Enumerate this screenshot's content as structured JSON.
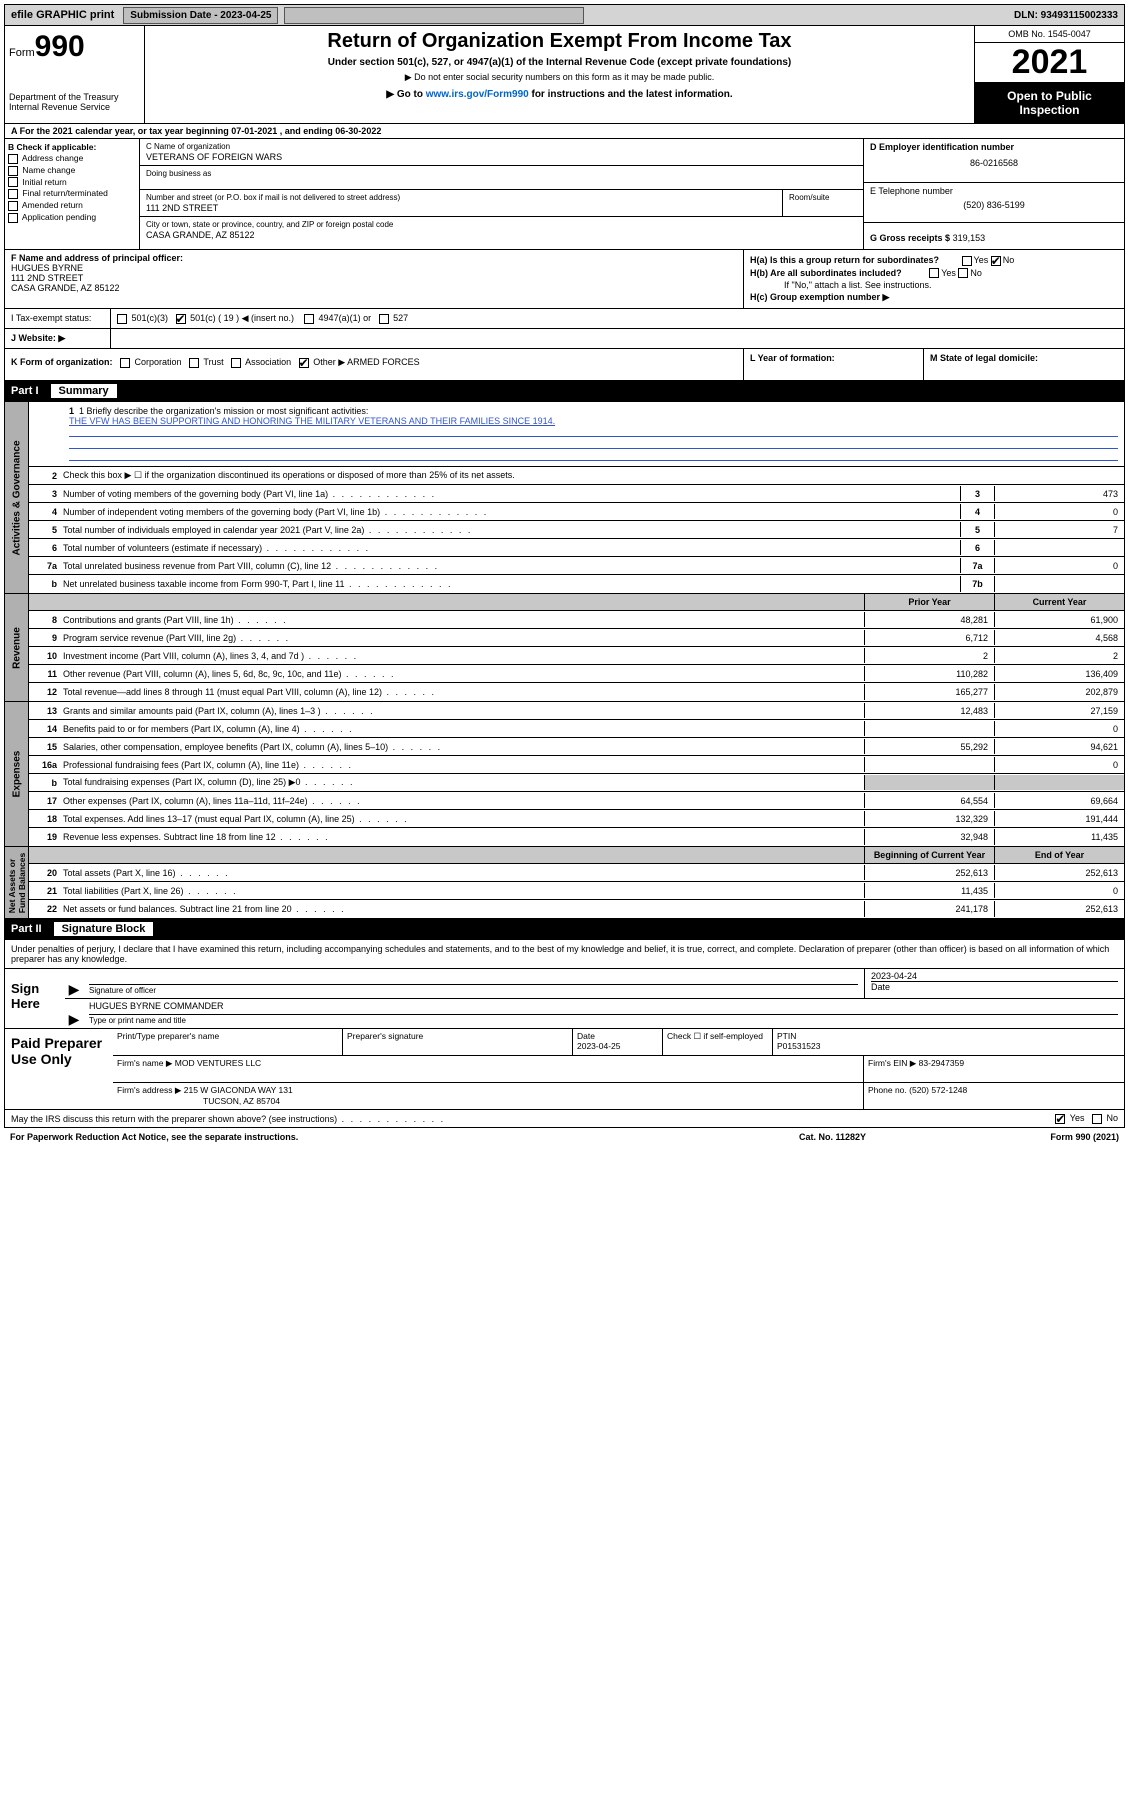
{
  "topbar": {
    "efile": "efile GRAPHIC print",
    "submission_label": "Submission Date - 2023-04-25",
    "dln": "DLN: 93493115002333"
  },
  "header": {
    "form_label": "Form",
    "form_number": "990",
    "dept": "Department of the Treasury\nInternal Revenue Service",
    "title": "Return of Organization Exempt From Income Tax",
    "subtitle": "Under section 501(c), 527, or 4947(a)(1) of the Internal Revenue Code (except private foundations)",
    "note1": "▶ Do not enter social security numbers on this form as it may be made public.",
    "note2_prefix": "▶ Go to ",
    "note2_link": "www.irs.gov/Form990",
    "note2_suffix": " for instructions and the latest information.",
    "omb": "OMB No. 1545-0047",
    "year": "2021",
    "open_public": "Open to Public Inspection"
  },
  "line_a": "For the 2021 calendar year, or tax year beginning 07-01-2021   , and ending 06-30-2022",
  "section_b": {
    "header": "B Check if applicable:",
    "items": [
      "Address change",
      "Name change",
      "Initial return",
      "Final return/terminated",
      "Amended return",
      "Application pending"
    ]
  },
  "section_c": {
    "name_label": "C Name of organization",
    "name_value": "VETERANS OF FOREIGN WARS",
    "dba_label": "Doing business as",
    "dba_value": "",
    "street_label": "Number and street (or P.O. box if mail is not delivered to street address)",
    "street_value": "111 2ND STREET",
    "room_label": "Room/suite",
    "city_label": "City or town, state or province, country, and ZIP or foreign postal code",
    "city_value": "CASA GRANDE, AZ  85122"
  },
  "section_d": {
    "ein_label": "D Employer identification number",
    "ein_value": "86-0216568",
    "tel_label": "E Telephone number",
    "tel_value": "(520) 836-5199",
    "gross_label": "G Gross receipts $",
    "gross_value": "319,153"
  },
  "section_f": {
    "label": "F  Name and address of principal officer:",
    "name": "HUGUES BYRNE",
    "street": "111 2ND STREET",
    "city": "CASA GRANDE, AZ  85122"
  },
  "section_h": {
    "ha": "H(a)  Is this a group return for subordinates?",
    "ha_yes": "Yes",
    "ha_no": "No",
    "hb": "H(b)  Are all subordinates included?",
    "hb_yes": "Yes",
    "hb_no": "No",
    "hb_note": "If \"No,\" attach a list. See instructions.",
    "hc": "H(c)  Group exemption number ▶"
  },
  "tax_status": {
    "label": "I    Tax-exempt status:",
    "opt1": "501(c)(3)",
    "opt2": "501(c) ( 19 ) ◀ (insert no.)",
    "opt3": "4947(a)(1) or",
    "opt4": "527"
  },
  "website": {
    "label": "J    Website: ▶",
    "value": ""
  },
  "section_k": {
    "label": "K Form of organization:",
    "opts": [
      "Corporation",
      "Trust",
      "Association",
      "Other ▶"
    ],
    "other_value": "ARMED FORCES",
    "l_label": "L Year of formation:",
    "m_label": "M State of legal domicile:"
  },
  "part1": {
    "name": "Part I",
    "title": "Summary",
    "line1_label": "1  Briefly describe the organization's mission or most significant activities:",
    "line1_text": "THE VFW HAS BEEN SUPPORTING AND HONORING THE MILITARY VETERANS AND THEIR FAMILIES SINCE 1914.",
    "line2": "Check this box ▶ ☐  if the organization discontinued its operations or disposed of more than 25% of its net assets.",
    "gov_rows": [
      {
        "n": "3",
        "t": "Number of voting members of the governing body (Part VI, line 1a)",
        "box": "3",
        "v": "473"
      },
      {
        "n": "4",
        "t": "Number of independent voting members of the governing body (Part VI, line 1b)",
        "box": "4",
        "v": "0"
      },
      {
        "n": "5",
        "t": "Total number of individuals employed in calendar year 2021 (Part V, line 2a)",
        "box": "5",
        "v": "7"
      },
      {
        "n": "6",
        "t": "Total number of volunteers (estimate if necessary)",
        "box": "6",
        "v": ""
      },
      {
        "n": "7a",
        "t": "Total unrelated business revenue from Part VIII, column (C), line 12",
        "box": "7a",
        "v": "0"
      },
      {
        "n": "b",
        "t": "Net unrelated business taxable income from Form 990-T, Part I, line 11",
        "box": "7b",
        "v": ""
      }
    ],
    "col_hdr1": "Prior Year",
    "col_hdr2": "Current Year",
    "rev_rows": [
      {
        "n": "8",
        "t": "Contributions and grants (Part VIII, line 1h)",
        "p": "48,281",
        "c": "61,900"
      },
      {
        "n": "9",
        "t": "Program service revenue (Part VIII, line 2g)",
        "p": "6,712",
        "c": "4,568"
      },
      {
        "n": "10",
        "t": "Investment income (Part VIII, column (A), lines 3, 4, and 7d )",
        "p": "2",
        "c": "2"
      },
      {
        "n": "11",
        "t": "Other revenue (Part VIII, column (A), lines 5, 6d, 8c, 9c, 10c, and 11e)",
        "p": "110,282",
        "c": "136,409"
      },
      {
        "n": "12",
        "t": "Total revenue—add lines 8 through 11 (must equal Part VIII, column (A), line 12)",
        "p": "165,277",
        "c": "202,879"
      }
    ],
    "exp_rows": [
      {
        "n": "13",
        "t": "Grants and similar amounts paid (Part IX, column (A), lines 1–3 )",
        "p": "12,483",
        "c": "27,159"
      },
      {
        "n": "14",
        "t": "Benefits paid to or for members (Part IX, column (A), line 4)",
        "p": "",
        "c": "0"
      },
      {
        "n": "15",
        "t": "Salaries, other compensation, employee benefits (Part IX, column (A), lines 5–10)",
        "p": "55,292",
        "c": "94,621"
      },
      {
        "n": "16a",
        "t": "Professional fundraising fees (Part IX, column (A), line 11e)",
        "p": "",
        "c": "0"
      },
      {
        "n": "b",
        "t": "Total fundraising expenses (Part IX, column (D), line 25) ▶0",
        "p": "GRAY",
        "c": "GRAY"
      },
      {
        "n": "17",
        "t": "Other expenses (Part IX, column (A), lines 11a–11d, 11f–24e)",
        "p": "64,554",
        "c": "69,664"
      },
      {
        "n": "18",
        "t": "Total expenses. Add lines 13–17 (must equal Part IX, column (A), line 25)",
        "p": "132,329",
        "c": "191,444"
      },
      {
        "n": "19",
        "t": "Revenue less expenses. Subtract line 18 from line 12",
        "p": "32,948",
        "c": "11,435"
      }
    ],
    "net_hdr1": "Beginning of Current Year",
    "net_hdr2": "End of Year",
    "net_rows": [
      {
        "n": "20",
        "t": "Total assets (Part X, line 16)",
        "p": "252,613",
        "c": "252,613"
      },
      {
        "n": "21",
        "t": "Total liabilities (Part X, line 26)",
        "p": "11,435",
        "c": "0"
      },
      {
        "n": "22",
        "t": "Net assets or fund balances. Subtract line 21 from line 20",
        "p": "241,178",
        "c": "252,613"
      }
    ]
  },
  "part2": {
    "name": "Part II",
    "title": "Signature Block",
    "intro": "Under penalties of perjury, I declare that I have examined this return, including accompanying schedules and statements, and to the best of my knowledge and belief, it is true, correct, and complete. Declaration of preparer (other than officer) is based on all information of which preparer has any knowledge.",
    "sign_here": "Sign Here",
    "sig_label": "Signature of officer",
    "date_label": "Date",
    "date_value": "2023-04-24",
    "officer_name": "HUGUES BYRNE COMMANDER",
    "officer_label": "Type or print name and title",
    "paid_label": "Paid Preparer Use Only",
    "prep_hdr": [
      "Print/Type preparer's name",
      "Preparer's signature",
      "Date",
      "Check ☐ if self-employed",
      "PTIN"
    ],
    "prep_date": "2023-04-25",
    "ptin": "P01531523",
    "firm_name_label": "Firm's name    ▶",
    "firm_name": "MOD VENTURES LLC",
    "firm_ein_label": "Firm's EIN ▶",
    "firm_ein": "83-2947359",
    "firm_addr_label": "Firm's address ▶",
    "firm_addr1": "215 W GIACONDA WAY 131",
    "firm_addr2": "TUCSON, AZ  85704",
    "phone_label": "Phone no.",
    "phone": "(520) 572-1248",
    "discuss": "May the IRS discuss this return with the preparer shown above? (see instructions)",
    "yes": "Yes",
    "no": "No"
  },
  "footer": {
    "pra": "For Paperwork Reduction Act Notice, see the separate instructions.",
    "cat": "Cat. No. 11282Y",
    "form": "Form 990 (2021)"
  }
}
